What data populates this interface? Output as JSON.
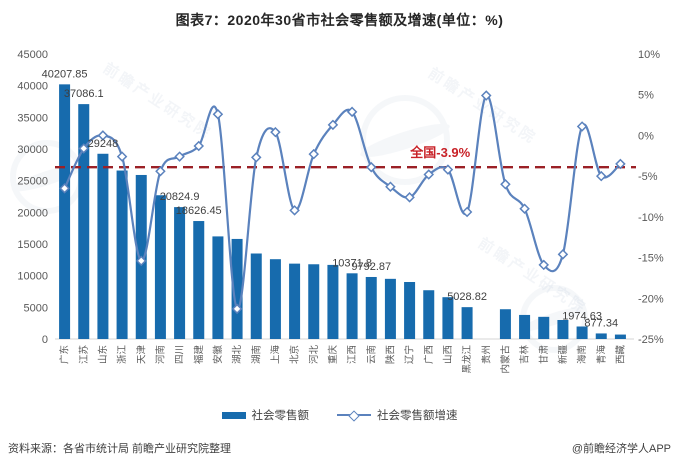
{
  "title": "图表7：2020年30省市社会零售额及增速(单位：%)",
  "annotation": {
    "label": "全国-3.9%",
    "value": -3.9
  },
  "legend": [
    {
      "label": "社会零售额",
      "type": "bar"
    },
    {
      "label": "社会零售额增速",
      "type": "line"
    }
  ],
  "footer": {
    "source": "资料来源：各省市统计局 前瞻产业研究院整理",
    "credit": "@前瞻经济学人APP"
  },
  "watermark": {
    "text": "前瞻产业研究院"
  },
  "colors": {
    "bar": "#176BAD",
    "line": "#5B82BD",
    "marker_fill": "#ffffff",
    "ref_line": "#9B2026",
    "ref_text": "#C82127",
    "axis_text": "#595959",
    "value_label_text": "#3f3f3f",
    "axis_line": "#d4d4d4"
  },
  "chart_data": {
    "type": "bar",
    "combo": "bar+line",
    "title": "图表7：2020年30省市社会零售额及增速(单位：%)",
    "categories": [
      "广东",
      "江苏",
      "山东",
      "浙江",
      "天津",
      "河南",
      "四川",
      "福建",
      "安徽",
      "湖北",
      "湖南",
      "上海",
      "北京",
      "河北",
      "重庆",
      "江西",
      "云南",
      "陕西",
      "辽宁",
      "广西",
      "山西",
      "黑龙江",
      "贵州",
      "内蒙古",
      "吉林",
      "甘肃",
      "新疆",
      "海南",
      "青海",
      "西藏"
    ],
    "series": [
      {
        "name": "社会零售额",
        "type": "bar",
        "y_axis": "left",
        "values": [
          40207.85,
          37086.1,
          29248,
          26600,
          25900,
          22700,
          20824.9,
          18626.45,
          16200,
          15800,
          13500,
          12600,
          11900,
          11800,
          11700,
          10371.8,
          9792.87,
          9500,
          9000,
          7700,
          6600,
          5028.82,
          null,
          4700,
          3800,
          3500,
          3000,
          1974.63,
          877.34,
          700
        ],
        "data_labels": {
          "0": "40207.85",
          "1": "37086.1",
          "2": "29248",
          "6": "20824.9",
          "7": "18626.45",
          "15": "10371.8",
          "16": "9792.87",
          "21": "5028.82",
          "27": "1974.63",
          "28": "877.34"
        }
      },
      {
        "name": "社会零售额增速",
        "type": "line",
        "y_axis": "right",
        "values": [
          -6.5,
          -1.6,
          0.0,
          -2.6,
          -15.4,
          -4.4,
          -2.6,
          -1.3,
          2.6,
          -21.3,
          -2.7,
          0.4,
          -9.2,
          -2.3,
          1.3,
          2.9,
          -3.9,
          -6.3,
          -7.6,
          -4.8,
          -4.2,
          -9.4,
          4.9,
          -6.0,
          -9.0,
          -15.9,
          -14.6,
          1.1,
          -5.0,
          -3.5
        ]
      }
    ],
    "left_axis": {
      "min": 0,
      "max": 45000,
      "step": 5000
    },
    "right_axis": {
      "min": -25,
      "max": 10,
      "step": 5,
      "format": "percent"
    },
    "reference_line": {
      "value": -3.9,
      "label": "全国-3.9%"
    },
    "legend_position": "bottom",
    "grid": false
  }
}
